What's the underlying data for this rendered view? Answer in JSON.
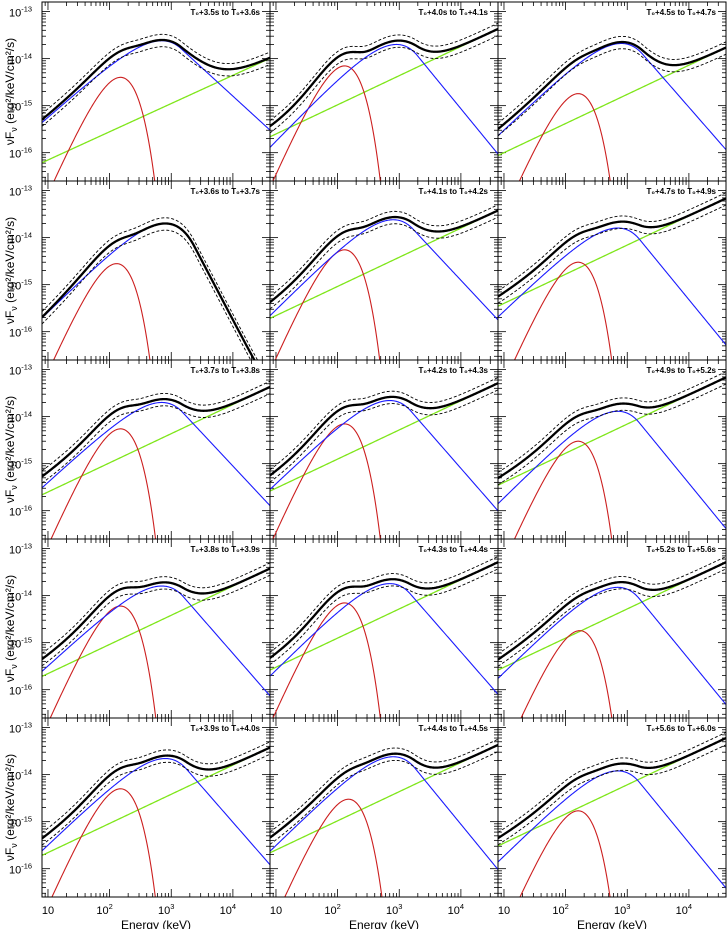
{
  "chart_data": {
    "type": "line",
    "grid": false,
    "xlabel": "Energy (keV)",
    "ylabel": "νF",
    "ylabel_sub": "ν",
    "ylabel_units": "(erg²/keV/cm²/s)",
    "xscale": "log",
    "yscale": "log",
    "xlim": [
      8,
      40000
    ],
    "ylim": [
      2.5e-17,
      1.6e-13
    ],
    "x_tick_labels": [
      {
        "value": 10,
        "base": "10",
        "exp": ""
      },
      {
        "value": 100,
        "base": "10",
        "exp": "2"
      },
      {
        "value": 1000,
        "base": "10",
        "exp": "3"
      },
      {
        "value": 10000,
        "base": "10",
        "exp": "4"
      }
    ],
    "y_tick_labels": [
      {
        "value": 1e-13,
        "base": "10",
        "exp": "-13"
      },
      {
        "value": 1e-14,
        "base": "10",
        "exp": "-14"
      },
      {
        "value": 1e-15,
        "base": "10",
        "exp": "-15"
      },
      {
        "value": 1e-16,
        "base": "10",
        "exp": "-16"
      }
    ],
    "series_legend": [
      {
        "name": "total",
        "color": "#000000"
      },
      {
        "name": "Band",
        "color": "#1a1aff"
      },
      {
        "name": "blackbody",
        "color": "#cc1f1f"
      },
      {
        "name": "power-law",
        "color": "#7fe61a"
      }
    ],
    "panels": [
      {
        "title": "T₀+3.5s to T₀+3.6s",
        "band": {
          "amp": 2.4e-14,
          "ep": 700,
          "alpha": -0.85,
          "beta": -3.2
        },
        "bb": {
          "amp": 4e-15,
          "peak": 150
        },
        "pl": {
          "amp": 7e-17,
          "index": 0.6
        }
      },
      {
        "title": "T₀+4.0s to T₀+4.1s",
        "band": {
          "amp": 2e-14,
          "ep": 900,
          "alpha": -0.65,
          "beta": -3.6
        },
        "bb": {
          "amp": 7e-15,
          "peak": 130
        },
        "pl": {
          "amp": 2.5e-16,
          "index": 0.62
        }
      },
      {
        "title": "T₀+4.5s to T₀+4.7s",
        "band": {
          "amp": 2.1e-14,
          "ep": 800,
          "alpha": -0.75,
          "beta": -3.5
        },
        "bb": {
          "amp": 1.8e-15,
          "peak": 160
        },
        "pl": {
          "amp": 1e-16,
          "index": 0.62
        }
      },
      {
        "title": "T₀+3.6s to T₀+3.7s",
        "band": {
          "amp": 2e-14,
          "ep": 800,
          "alpha": -0.72,
          "beta": -4.5
        },
        "bb": {
          "amp": 2.8e-15,
          "peak": 130
        },
        "pl": {
          "amp": 1e-20,
          "index": 0.6
        }
      },
      {
        "title": "T₀+4.1s to T₀+4.2s",
        "band": {
          "amp": 2.4e-14,
          "ep": 800,
          "alpha": -0.7,
          "beta": -3.4
        },
        "bb": {
          "amp": 5.5e-15,
          "peak": 130
        },
        "pl": {
          "amp": 2.2e-16,
          "index": 0.62
        }
      },
      {
        "title": "T₀+4.7s to T₀+4.9s",
        "band": {
          "amp": 1.6e-14,
          "ep": 700,
          "alpha": -0.75,
          "beta": -3.6
        },
        "bb": {
          "amp": 3e-15,
          "peak": 160
        },
        "pl": {
          "amp": 4e-16,
          "index": 0.62
        }
      },
      {
        "title": "T₀+3.7s to T₀+3.8s",
        "band": {
          "amp": 2e-14,
          "ep": 700,
          "alpha": -0.8,
          "beta": -3.4
        },
        "bb": {
          "amp": 5.5e-15,
          "peak": 150
        },
        "pl": {
          "amp": 2.5e-16,
          "index": 0.62
        }
      },
      {
        "title": "T₀+4.2s to T₀+4.3s",
        "band": {
          "amp": 2.2e-14,
          "ep": 700,
          "alpha": -0.75,
          "beta": -3.5
        },
        "bb": {
          "amp": 7e-15,
          "peak": 130
        },
        "pl": {
          "amp": 3e-16,
          "index": 0.62
        }
      },
      {
        "title": "T₀+4.9s to T₀+5.2s",
        "band": {
          "amp": 1.3e-14,
          "ep": 700,
          "alpha": -0.7,
          "beta": -3.6
        },
        "bb": {
          "amp": 3e-15,
          "peak": 160
        },
        "pl": {
          "amp": 4e-16,
          "index": 0.62
        }
      },
      {
        "title": "T₀+3.8s to T₀+3.9s",
        "band": {
          "amp": 1.6e-14,
          "ep": 700,
          "alpha": -0.8,
          "beta": -3.5
        },
        "bb": {
          "amp": 6e-15,
          "peak": 150
        },
        "pl": {
          "amp": 2.2e-16,
          "index": 0.62
        }
      },
      {
        "title": "T₀+4.3s to T₀+4.4s",
        "band": {
          "amp": 1.8e-14,
          "ep": 700,
          "alpha": -0.7,
          "beta": -3.5
        },
        "bb": {
          "amp": 7e-15,
          "peak": 130
        },
        "pl": {
          "amp": 3e-16,
          "index": 0.62
        }
      },
      {
        "title": "T₀+5.2s to T₀+5.6s",
        "band": {
          "amp": 1.5e-14,
          "ep": 700,
          "alpha": -0.72,
          "beta": -3.6
        },
        "bb": {
          "amp": 1.8e-15,
          "peak": 170
        },
        "pl": {
          "amp": 3e-16,
          "index": 0.62
        }
      },
      {
        "title": "T₀+3.9s to T₀+4.0s",
        "band": {
          "amp": 2.2e-14,
          "ep": 800,
          "alpha": -0.75,
          "beta": -3.5
        },
        "bb": {
          "amp": 5e-15,
          "peak": 150
        },
        "pl": {
          "amp": 2.2e-16,
          "index": 0.62
        }
      },
      {
        "title": "T₀+4.4s to T₀+4.5s",
        "band": {
          "amp": 2.4e-14,
          "ep": 800,
          "alpha": -0.72,
          "beta": -3.6
        },
        "bb": {
          "amp": 3e-15,
          "peak": 150
        },
        "pl": {
          "amp": 2.5e-16,
          "index": 0.62
        }
      },
      {
        "title": "T₀+5.6s to T₀+6.0s",
        "band": {
          "amp": 1.2e-14,
          "ep": 700,
          "alpha": -0.72,
          "beta": -3.6
        },
        "bb": {
          "amp": 1.7e-15,
          "peak": 160
        },
        "pl": {
          "amp": 3.5e-16,
          "index": 0.62
        }
      }
    ]
  }
}
